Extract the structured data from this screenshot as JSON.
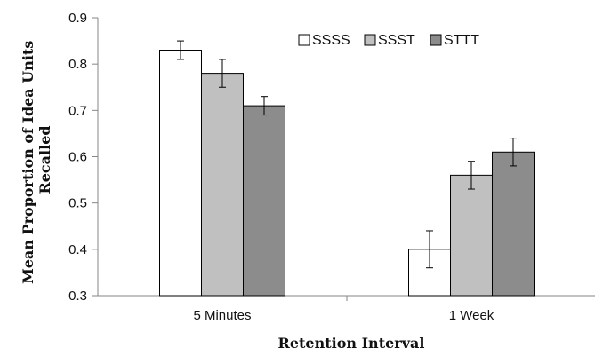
{
  "chart_data": {
    "type": "bar",
    "categories": [
      "5 Minutes",
      "1 Week"
    ],
    "series": [
      {
        "name": "SSSS",
        "values": [
          0.83,
          0.4
        ],
        "error": [
          0.02,
          0.04
        ],
        "color": "#ffffff"
      },
      {
        "name": "SSST",
        "values": [
          0.78,
          0.56
        ],
        "error": [
          0.03,
          0.03
        ],
        "color": "#c0c0c0"
      },
      {
        "name": "STTT",
        "values": [
          0.71,
          0.61
        ],
        "error": [
          0.02,
          0.03
        ],
        "color": "#8c8c8c"
      }
    ],
    "xlabel": "Retention Interval",
    "ylabel_lines": [
      "Mean Proportion of Idea Units",
      "Recalled"
    ],
    "ylim": [
      0.3,
      0.9
    ],
    "yticks": [
      "0.3",
      "0.4",
      "0.5",
      "0.6",
      "0.7",
      "0.8",
      "0.9"
    ],
    "grid": false,
    "legend_position": "top-right"
  }
}
